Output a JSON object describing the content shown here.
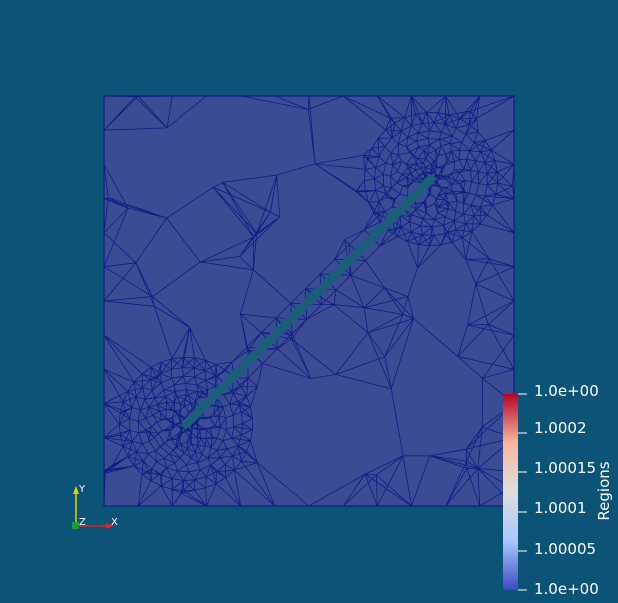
{
  "colors": {
    "background": "#0b5377",
    "mesh_fill": "#3b4c95",
    "mesh_edges": "#0d1d85",
    "crack": "#1c5e7a",
    "axis_x": "#e0242a",
    "axis_y": "#e5d300",
    "axis_z": "#1e9a3d",
    "colormap": [
      "#3b4cc0",
      "#aac7fd",
      "#dddddd",
      "#f7b89c",
      "#b40426"
    ]
  },
  "colorbar": {
    "title": "Regions",
    "labels": [
      "1.0e+00",
      "1.0002",
      "1.00015",
      "1.0001",
      "1.00005",
      "1.0e+00"
    ],
    "values": [
      1.00025,
      1.0002,
      1.00015,
      1.0001,
      1.00005,
      1.0
    ]
  },
  "axes": {
    "x": "X",
    "y": "Y",
    "z": "Z"
  }
}
